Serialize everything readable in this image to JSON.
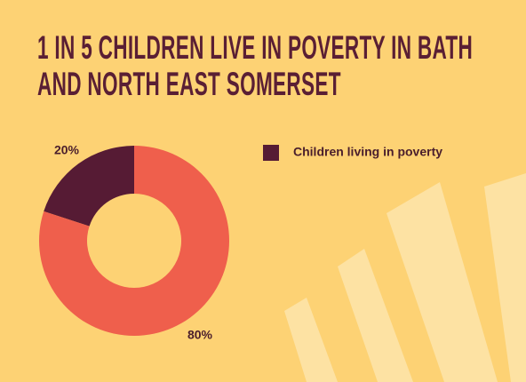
{
  "chart_data": {
    "type": "donut",
    "title": "1 IN 5 CHILDREN LIVE IN POVERTY IN BATH AND NORTH EAST SOMERSET",
    "categories": [
      "Children living in poverty",
      null
    ],
    "values": [
      20,
      80
    ],
    "value_labels": [
      "20%",
      "80%"
    ],
    "colors": [
      "#561b34",
      "#ef5f4c"
    ]
  }
}
